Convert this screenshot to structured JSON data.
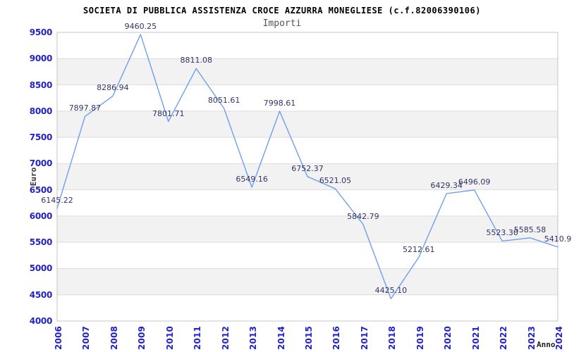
{
  "chart_data": {
    "type": "line",
    "title": "SOCIETA DI PUBBLICA ASSISTENZA CROCE AZZURRA MONEGLIESE (c.f.82006390106)",
    "subtitle": "Importi",
    "xlabel": "Anno",
    "ylabel": "Euro",
    "x": [
      "2006",
      "2007",
      "2008",
      "2009",
      "2010",
      "2011",
      "2012",
      "2013",
      "2014",
      "2015",
      "2016",
      "2017",
      "2018",
      "2019",
      "2020",
      "2021",
      "2022",
      "2023",
      "2024"
    ],
    "values": [
      6145.22,
      7897.87,
      8286.94,
      9460.25,
      7801.71,
      8811.08,
      8051.61,
      6549.16,
      7998.61,
      6752.37,
      6521.05,
      5842.79,
      4425.1,
      5212.61,
      6429.34,
      6496.09,
      5523.3,
      5585.58,
      5410.9
    ],
    "point_labels": [
      "6145.22",
      "7897.87",
      "8286.94",
      "9460.25",
      "7801.71",
      "8811.08",
      "8051.61",
      "6549.16",
      "7998.61",
      "6752.37",
      "6521.05",
      "5842.79",
      "4425.10",
      "5212.61",
      "6429.34",
      "6496.09",
      "5523.30",
      "5585.58",
      "5410.9"
    ],
    "ylim": [
      4000,
      9500
    ],
    "yticks": [
      4000,
      4500,
      5000,
      5500,
      6000,
      6500,
      7000,
      7500,
      8000,
      8500,
      9000,
      9500
    ],
    "grid": true,
    "legend": "none",
    "colors": {
      "line": "#6f9fee",
      "tick_label": "#2222cc",
      "value_label": "#333366",
      "band_light": "#ffffff",
      "band_dark": "#f2f2f2",
      "gridline": "#dddddd",
      "plot_border": "#c4c4c4",
      "title": "#000000",
      "subtitle": "#555555"
    }
  }
}
